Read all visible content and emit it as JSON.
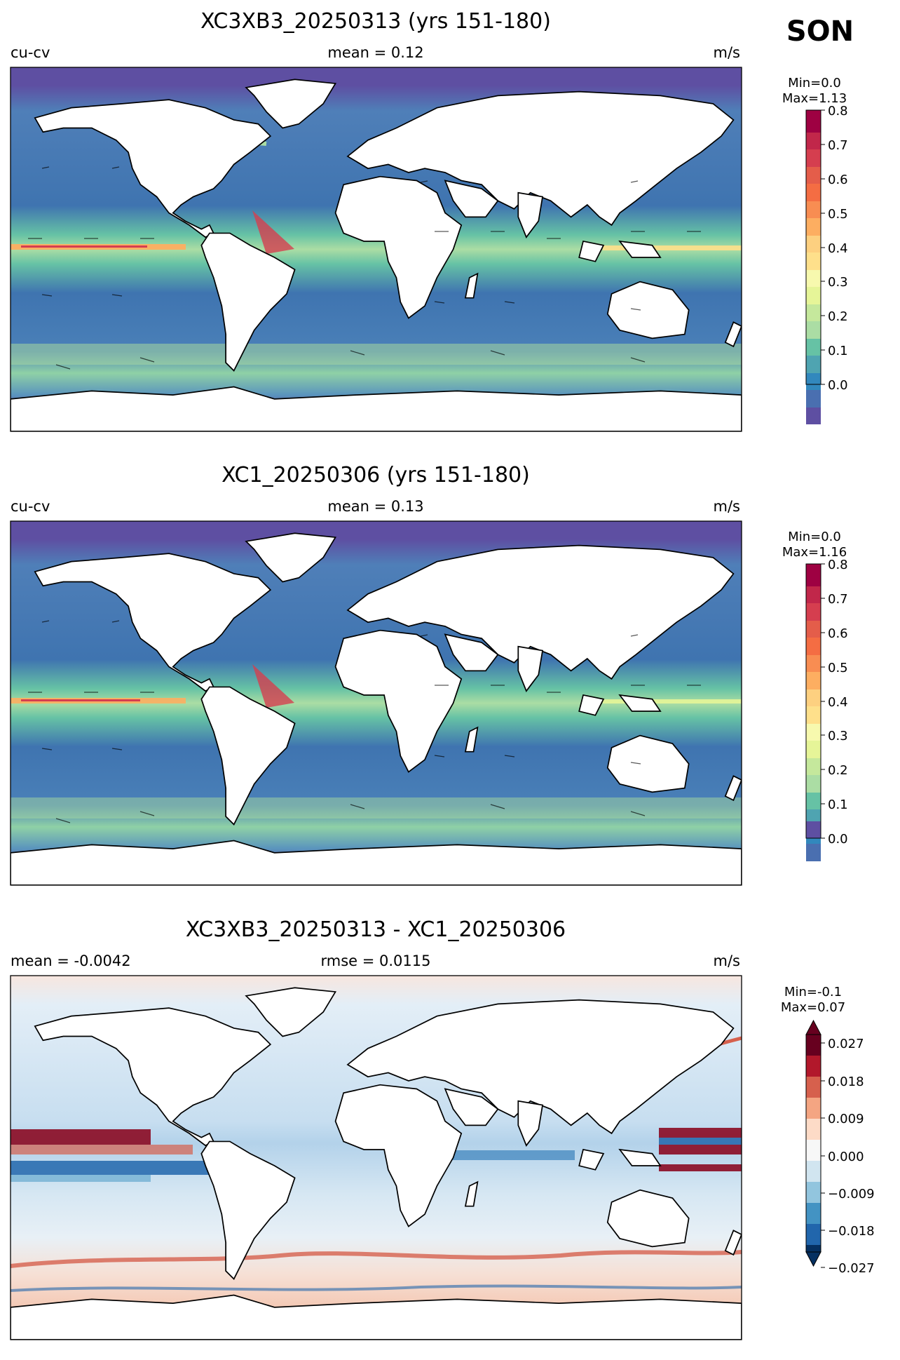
{
  "season": "SON",
  "chart_data": [
    {
      "type": "heatmap",
      "title": "XC3XB3_20250313 (yrs 151-180)",
      "left_label": "cu-cv",
      "center_label": "mean = 0.12",
      "units": "m/s",
      "min_label": "Min=0.0",
      "max_label": "Max=1.13",
      "colormap": "Spectral_r",
      "colorbar_range": [
        0.0,
        0.8
      ],
      "colorbar_ticks": [
        "0.0",
        "0.1",
        "0.2",
        "0.3",
        "0.4",
        "0.5",
        "0.6",
        "0.7",
        "0.8"
      ],
      "colorbar_extend": "none",
      "equatorial_strength": 1.0
    },
    {
      "type": "heatmap",
      "title": "XC1_20250306 (yrs 151-180)",
      "left_label": "cu-cv",
      "center_label": "mean = 0.13",
      "units": "m/s",
      "min_label": "Min=0.0",
      "max_label": "Max=1.16",
      "colormap": "Spectral_r",
      "colorbar_range": [
        0.0,
        0.8
      ],
      "colorbar_ticks": [
        "0.0",
        "0.1",
        "0.2",
        "0.3",
        "0.4",
        "0.5",
        "0.6",
        "0.7",
        "0.8"
      ],
      "colorbar_extend": "none",
      "equatorial_strength": 0.85
    },
    {
      "type": "heatmap",
      "title": "XC3XB3_20250313 - XC1_20250306",
      "left_label": "mean = -0.0042",
      "center_label": "rmse = 0.0115",
      "units": "m/s",
      "min_label": "Min=-0.1",
      "max_label": "Max=0.07",
      "colormap": "RdBu_r",
      "colorbar_range": [
        -0.032,
        0.032
      ],
      "colorbar_ticks": [
        "−0.027",
        "−0.018",
        "−0.009",
        "0.000",
        "0.009",
        "0.018",
        "0.027"
      ],
      "colorbar_extend": "both"
    }
  ]
}
